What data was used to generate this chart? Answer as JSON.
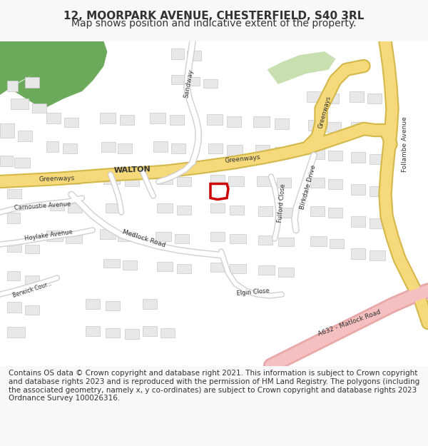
{
  "title": "12, MOORPARK AVENUE, CHESTERFIELD, S40 3RL",
  "subtitle": "Map shows position and indicative extent of the property.",
  "footer": "Contains OS data © Crown copyright and database right 2021. This information is subject to Crown copyright and database rights 2023 and is reproduced with the permission of HM Land Registry. The polygons (including the associated geometry, namely x, y co-ordinates) are subject to Crown copyright and database rights 2023 Ordnance Survey 100026316.",
  "bg_color": "#f8f8f8",
  "map_bg": "#ffffff",
  "road_yellow": "#f5d97a",
  "road_outline": "#d4b84a",
  "building_fill": "#e8e8e8",
  "building_edge": "#c8c8c8",
  "green_fill": "#6aaa5a",
  "green_light": "#c8e0b0",
  "pink_road": "#f5c0c0",
  "pink_road_outline": "#e8a8a8",
  "red_plot": "#cc0000",
  "text_color": "#333333",
  "title_fontsize": 11,
  "subtitle_fontsize": 10,
  "footer_fontsize": 7.5
}
